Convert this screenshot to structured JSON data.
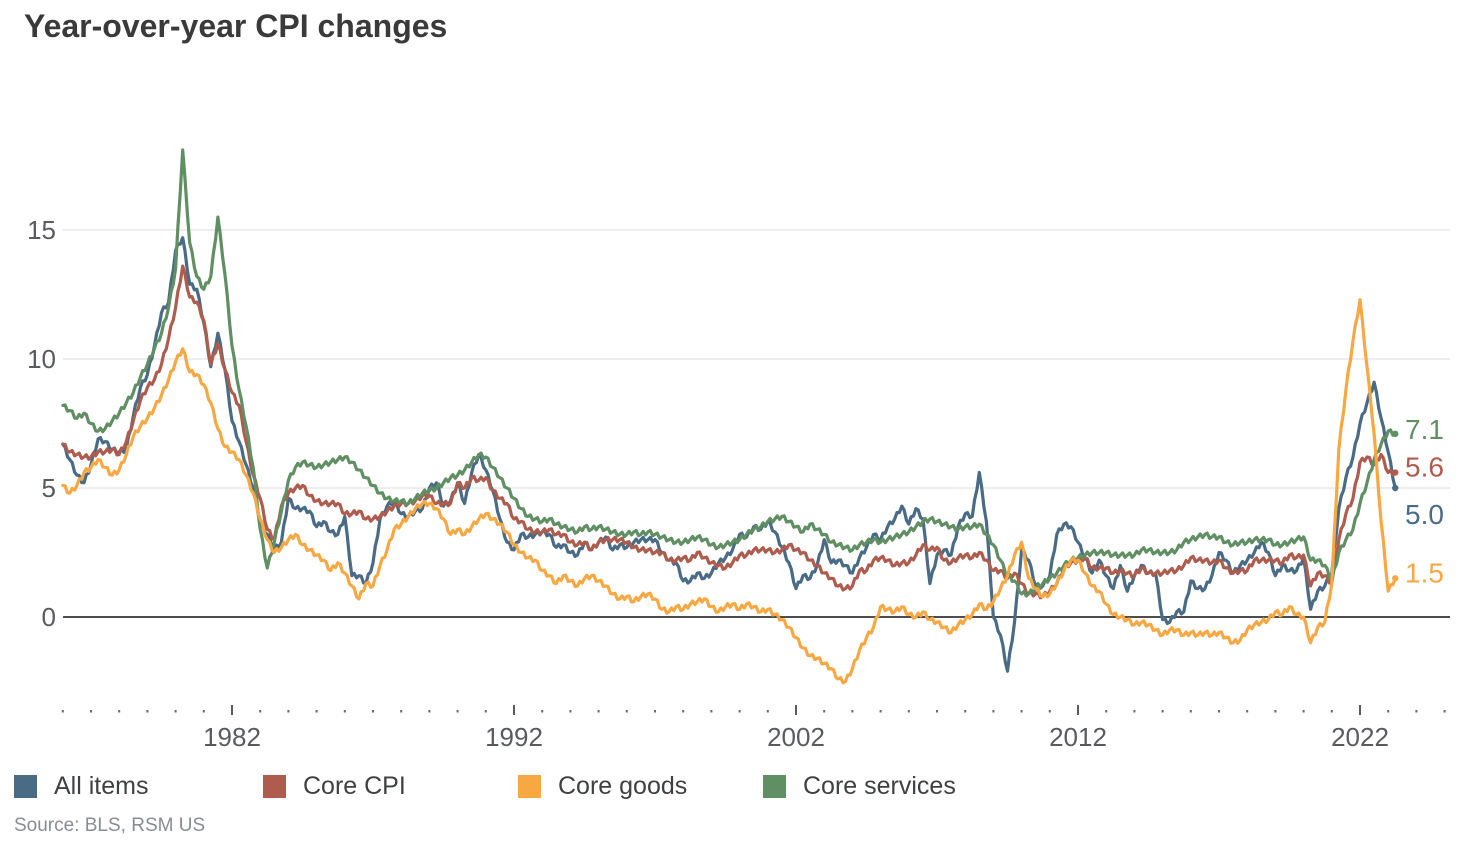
{
  "title": "Year-over-year CPI changes",
  "source": "Source: BLS, RSM US",
  "colors": {
    "all_items": "#4a6b85",
    "core_cpi": "#ae5c4d",
    "core_goods": "#f8a843",
    "core_services": "#5f8f62",
    "gridline": "#e4e4e4",
    "zero_line": "#4d4d4d",
    "axis_text": "#595b5e",
    "title_text": "#3a3a3a",
    "source_text": "#8a8d90"
  },
  "legend": {
    "items": [
      {
        "label": "All items",
        "color": "#4a6b85"
      },
      {
        "label": "Core CPI",
        "color": "#ae5c4d"
      },
      {
        "label": "Core goods",
        "color": "#f8a843"
      },
      {
        "label": "Core services",
        "color": "#5f8f62"
      }
    ]
  },
  "chart_data": {
    "type": "line",
    "title": "Year-over-year CPI changes",
    "xlabel": "",
    "ylabel": "",
    "x_start": 1976.0,
    "x_step": 0.25,
    "x_end": 2023.25,
    "ylim": [
      -3.5,
      18.5
    ],
    "yticks": [
      0,
      5,
      10,
      15
    ],
    "x_tick_labels": [
      1982,
      1992,
      2002,
      2012,
      2022
    ],
    "minor_tick_years": {
      "from": 1976,
      "to": 2025
    },
    "grid": "horizontal",
    "legend_position": "bottom",
    "series": [
      {
        "name": "All items",
        "color": "#4a6b85",
        "end_label": "5.0",
        "values": [
          6.7,
          6.1,
          5.5,
          5.2,
          5.9,
          6.9,
          6.8,
          6.5,
          6.4,
          6.5,
          7.8,
          8.9,
          9.4,
          10.5,
          11.8,
          12.2,
          14.2,
          14.7,
          12.9,
          12.7,
          11.4,
          9.7,
          11.0,
          9.6,
          7.6,
          6.8,
          5.9,
          5.0,
          3.7,
          3.2,
          2.6,
          2.9,
          4.6,
          4.2,
          4.2,
          4.1,
          3.5,
          3.7,
          3.3,
          3.2,
          3.9,
          1.6,
          1.6,
          1.3,
          2.1,
          3.8,
          4.3,
          4.5,
          4.0,
          3.9,
          4.1,
          4.2,
          5.0,
          5.2,
          4.3,
          4.5,
          5.2,
          4.4,
          5.6,
          6.3,
          5.7,
          4.9,
          3.8,
          2.9,
          2.6,
          3.2,
          3.1,
          3.2,
          3.3,
          3.2,
          2.7,
          2.8,
          2.5,
          2.4,
          2.9,
          2.6,
          2.9,
          3.1,
          2.6,
          2.8,
          2.7,
          2.9,
          3.0,
          3.0,
          3.0,
          2.5,
          2.2,
          2.1,
          1.4,
          1.4,
          1.7,
          1.5,
          1.7,
          2.1,
          2.3,
          2.6,
          3.2,
          3.1,
          3.5,
          3.4,
          3.7,
          3.3,
          2.7,
          2.1,
          1.1,
          1.6,
          1.5,
          2.0,
          3.0,
          2.1,
          2.2,
          2.0,
          1.7,
          2.3,
          2.7,
          3.2,
          3.0,
          3.5,
          3.8,
          4.3,
          3.6,
          4.2,
          3.8,
          1.3,
          2.4,
          2.6,
          2.4,
          3.5,
          4.0,
          3.9,
          5.6,
          3.7,
          0.0,
          -0.7,
          -2.1,
          -0.2,
          2.6,
          2.2,
          1.2,
          1.2,
          1.6,
          3.2,
          3.6,
          3.5,
          2.9,
          2.3,
          1.7,
          2.2,
          1.6,
          1.1,
          2.0,
          1.0,
          1.6,
          2.0,
          1.7,
          1.7,
          -0.1,
          -0.2,
          0.2,
          0.2,
          1.4,
          1.1,
          1.1,
          1.6,
          2.5,
          2.2,
          1.7,
          2.0,
          2.2,
          2.5,
          2.9,
          2.5,
          1.6,
          2.0,
          1.8,
          1.8,
          2.3,
          0.3,
          1.0,
          1.2,
          1.7,
          4.2,
          5.4,
          6.2,
          7.5,
          8.3,
          9.1,
          7.7,
          6.4,
          5.0
        ]
      },
      {
        "name": "Core CPI",
        "color": "#ae5c4d",
        "end_label": "5.6",
        "values": [
          6.7,
          6.4,
          6.3,
          6.2,
          6.2,
          6.4,
          6.4,
          6.5,
          6.3,
          6.8,
          7.6,
          8.4,
          8.9,
          9.2,
          9.8,
          10.8,
          12.0,
          13.6,
          12.4,
          12.2,
          11.5,
          9.8,
          10.6,
          9.6,
          8.7,
          8.2,
          6.8,
          5.5,
          4.6,
          3.4,
          3.0,
          4.3,
          4.8,
          5.0,
          5.1,
          4.7,
          4.5,
          4.4,
          4.4,
          4.4,
          4.0,
          4.0,
          4.1,
          3.8,
          3.8,
          3.9,
          4.1,
          4.3,
          4.4,
          4.4,
          4.5,
          4.7,
          4.7,
          4.4,
          4.4,
          4.4,
          5.2,
          5.0,
          5.4,
          5.3,
          5.4,
          4.9,
          4.6,
          4.4,
          3.8,
          3.7,
          3.4,
          3.3,
          3.3,
          3.4,
          3.2,
          3.2,
          2.9,
          2.8,
          2.9,
          2.6,
          2.9,
          3.0,
          3.0,
          3.0,
          2.9,
          2.7,
          2.6,
          2.6,
          2.5,
          2.5,
          2.2,
          2.2,
          2.3,
          2.2,
          2.5,
          2.3,
          2.1,
          2.0,
          1.9,
          2.1,
          2.4,
          2.4,
          2.6,
          2.6,
          2.6,
          2.5,
          2.6,
          2.8,
          2.6,
          2.5,
          2.2,
          2.0,
          1.7,
          1.5,
          1.2,
          1.1,
          1.2,
          1.8,
          1.8,
          2.2,
          2.3,
          2.2,
          2.0,
          2.1,
          2.1,
          2.4,
          2.8,
          2.6,
          2.7,
          2.2,
          2.1,
          2.3,
          2.4,
          2.3,
          2.5,
          2.2,
          1.8,
          1.8,
          1.5,
          1.7,
          1.3,
          0.9,
          0.9,
          0.8,
          1.0,
          1.3,
          1.9,
          2.1,
          2.2,
          2.3,
          1.9,
          1.9,
          1.9,
          1.7,
          1.8,
          1.7,
          1.6,
          1.9,
          1.7,
          1.7,
          1.7,
          1.8,
          1.8,
          2.0,
          2.3,
          2.2,
          2.2,
          2.1,
          2.2,
          1.9,
          1.7,
          1.8,
          1.8,
          2.2,
          2.2,
          2.2,
          2.2,
          2.1,
          2.4,
          2.3,
          2.4,
          1.2,
          1.7,
          1.6,
          1.3,
          3.0,
          4.0,
          4.6,
          6.0,
          6.2,
          5.9,
          6.3,
          5.6,
          5.6
        ]
      },
      {
        "name": "Core goods",
        "color": "#f8a843",
        "end_label": "1.5",
        "values": [
          5.1,
          4.8,
          5.1,
          5.6,
          5.8,
          6.1,
          5.8,
          5.5,
          5.7,
          6.3,
          7.0,
          7.4,
          7.7,
          8.1,
          8.6,
          9.2,
          9.9,
          10.4,
          9.5,
          9.4,
          9.0,
          8.3,
          7.3,
          6.6,
          6.4,
          6.1,
          5.5,
          4.8,
          3.8,
          3.0,
          2.5,
          2.7,
          3.0,
          3.2,
          2.8,
          2.6,
          2.4,
          2.2,
          1.8,
          2.1,
          1.7,
          1.2,
          0.7,
          1.3,
          1.2,
          2.0,
          2.6,
          3.4,
          3.6,
          3.9,
          4.2,
          4.4,
          4.4,
          4.2,
          3.8,
          3.2,
          3.4,
          3.2,
          3.5,
          3.8,
          4.0,
          3.8,
          3.6,
          3.3,
          2.8,
          2.5,
          2.3,
          2.2,
          1.8,
          1.6,
          1.3,
          1.6,
          1.4,
          1.2,
          1.5,
          1.6,
          1.4,
          1.2,
          0.9,
          0.7,
          0.8,
          0.6,
          0.8,
          0.9,
          0.7,
          0.3,
          0.2,
          0.4,
          0.3,
          0.5,
          0.6,
          0.7,
          0.4,
          0.2,
          0.4,
          0.5,
          0.3,
          0.5,
          0.4,
          0.2,
          0.3,
          0.1,
          -0.1,
          -0.4,
          -0.8,
          -1.2,
          -1.5,
          -1.6,
          -1.8,
          -2.0,
          -2.4,
          -2.5,
          -2.0,
          -1.3,
          -0.8,
          -0.4,
          0.4,
          0.3,
          0.2,
          0.4,
          0.1,
          0.0,
          0.2,
          -0.1,
          -0.2,
          -0.4,
          -0.6,
          -0.3,
          -0.1,
          0.1,
          0.5,
          0.3,
          0.6,
          1.1,
          1.6,
          2.4,
          2.9,
          1.5,
          1.1,
          0.8,
          0.9,
          1.3,
          1.8,
          2.2,
          2.2,
          1.7,
          1.2,
          1.0,
          0.5,
          0.1,
          0.0,
          -0.1,
          -0.3,
          -0.2,
          -0.3,
          -0.5,
          -0.7,
          -0.5,
          -0.5,
          -0.7,
          -0.6,
          -0.7,
          -0.6,
          -0.7,
          -0.6,
          -0.8,
          -1.0,
          -0.9,
          -0.5,
          -0.3,
          -0.2,
          -0.1,
          0.2,
          0.1,
          0.4,
          0.1,
          0.0,
          -1.0,
          -0.4,
          -0.2,
          1.3,
          6.5,
          8.8,
          10.7,
          12.3,
          9.7,
          7.1,
          3.7,
          1.0,
          1.5
        ]
      },
      {
        "name": "Core services",
        "color": "#5f8f62",
        "end_label": "7.1",
        "values": [
          8.2,
          8.0,
          7.7,
          7.9,
          7.5,
          7.2,
          7.3,
          7.6,
          7.9,
          8.3,
          8.7,
          9.3,
          9.8,
          10.4,
          11.0,
          12.0,
          13.5,
          18.1,
          14.5,
          13.2,
          12.7,
          13.2,
          15.5,
          13.3,
          10.5,
          8.8,
          7.4,
          5.8,
          3.4,
          1.9,
          2.9,
          4.1,
          5.3,
          5.8,
          6.0,
          5.9,
          5.8,
          5.9,
          6.0,
          6.1,
          6.2,
          6.0,
          5.7,
          5.4,
          5.1,
          4.8,
          4.6,
          4.5,
          4.5,
          4.4,
          4.6,
          4.8,
          4.9,
          5.0,
          5.2,
          5.4,
          5.5,
          5.7,
          6.0,
          6.3,
          6.2,
          5.8,
          5.4,
          5.0,
          4.6,
          4.2,
          3.9,
          3.8,
          3.7,
          3.8,
          3.6,
          3.5,
          3.4,
          3.3,
          3.5,
          3.4,
          3.5,
          3.4,
          3.3,
          3.2,
          3.2,
          3.3,
          3.2,
          3.3,
          3.2,
          3.1,
          3.0,
          2.9,
          2.9,
          3.0,
          3.1,
          3.0,
          2.8,
          2.7,
          2.8,
          2.9,
          3.0,
          3.2,
          3.4,
          3.5,
          3.7,
          3.8,
          3.9,
          3.7,
          3.5,
          3.3,
          3.6,
          3.4,
          3.2,
          2.9,
          2.8,
          2.7,
          2.6,
          2.8,
          2.9,
          3.0,
          2.9,
          3.0,
          3.1,
          3.2,
          3.3,
          3.5,
          3.7,
          3.8,
          3.7,
          3.6,
          3.5,
          3.4,
          3.5,
          3.5,
          3.6,
          3.2,
          2.8,
          2.2,
          1.6,
          1.4,
          0.9,
          0.9,
          1.1,
          1.3,
          1.5,
          1.7,
          2.0,
          2.2,
          2.3,
          2.4,
          2.5,
          2.5,
          2.5,
          2.4,
          2.4,
          2.4,
          2.4,
          2.6,
          2.6,
          2.5,
          2.5,
          2.5,
          2.6,
          2.9,
          3.0,
          3.1,
          3.2,
          3.1,
          3.1,
          2.9,
          2.8,
          2.9,
          2.9,
          3.0,
          3.0,
          3.0,
          2.8,
          2.8,
          2.9,
          3.0,
          3.1,
          2.2,
          2.2,
          2.0,
          1.4,
          2.5,
          3.0,
          3.4,
          4.4,
          5.2,
          6.1,
          6.7,
          7.2,
          7.1
        ]
      }
    ]
  }
}
